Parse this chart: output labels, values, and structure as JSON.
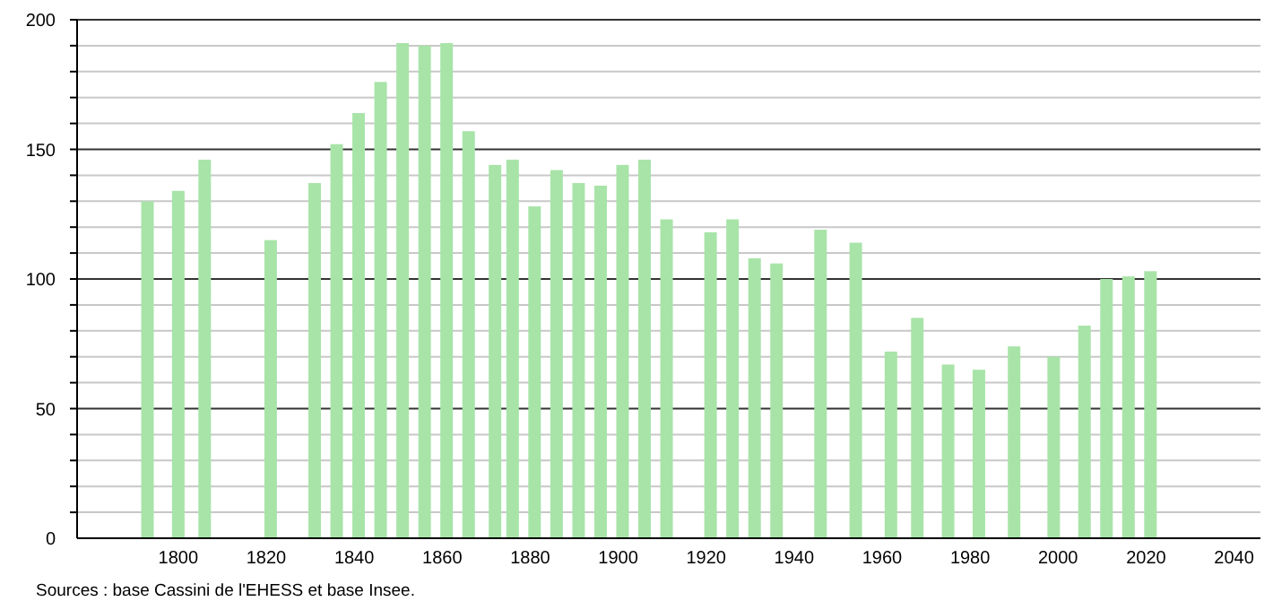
{
  "chart_data": {
    "type": "bar",
    "x": [
      1793,
      1800,
      1806,
      1821,
      1831,
      1836,
      1841,
      1846,
      1851,
      1856,
      1861,
      1866,
      1872,
      1876,
      1881,
      1886,
      1891,
      1896,
      1901,
      1906,
      1911,
      1921,
      1926,
      1931,
      1936,
      1946,
      1954,
      1962,
      1968,
      1975,
      1982,
      1990,
      1999,
      2006,
      2011,
      2016,
      2021
    ],
    "values": [
      130,
      134,
      146,
      115,
      137,
      152,
      164,
      176,
      191,
      190,
      191,
      157,
      144,
      146,
      128,
      142,
      137,
      136,
      144,
      146,
      123,
      118,
      123,
      108,
      106,
      119,
      114,
      72,
      85,
      67,
      65,
      74,
      70,
      82,
      100,
      101,
      103
    ],
    "color": "#a8e4a8",
    "xlim": [
      1777,
      2046
    ],
    "xticks": [
      1800,
      1820,
      1840,
      1860,
      1880,
      1900,
      1920,
      1940,
      1960,
      1980,
      2000,
      2020,
      2040
    ],
    "ylim": [
      0,
      200
    ],
    "yticks": [
      0,
      {
        "value": 10,
        "label": null
      },
      {
        "value": 20,
        "label": null
      },
      {
        "value": 30,
        "label": null
      },
      {
        "value": 40,
        "label": null
      },
      50,
      {
        "value": 60,
        "label": null
      },
      {
        "value": 70,
        "label": null
      },
      {
        "value": 80,
        "label": null
      },
      {
        "value": 90,
        "label": null
      },
      100,
      {
        "value": 110,
        "label": null
      },
      {
        "value": 120,
        "label": null
      },
      {
        "value": 130,
        "label": null
      },
      {
        "value": 140,
        "label": null
      },
      150,
      {
        "value": 160,
        "label": null
      },
      {
        "value": 170,
        "label": null
      },
      {
        "value": 180,
        "label": null
      },
      {
        "value": 190,
        "label": null
      },
      200
    ],
    "grid": "y",
    "annotations": [
      "Sources : base Cassini de l'EHESS et base Insee."
    ]
  }
}
